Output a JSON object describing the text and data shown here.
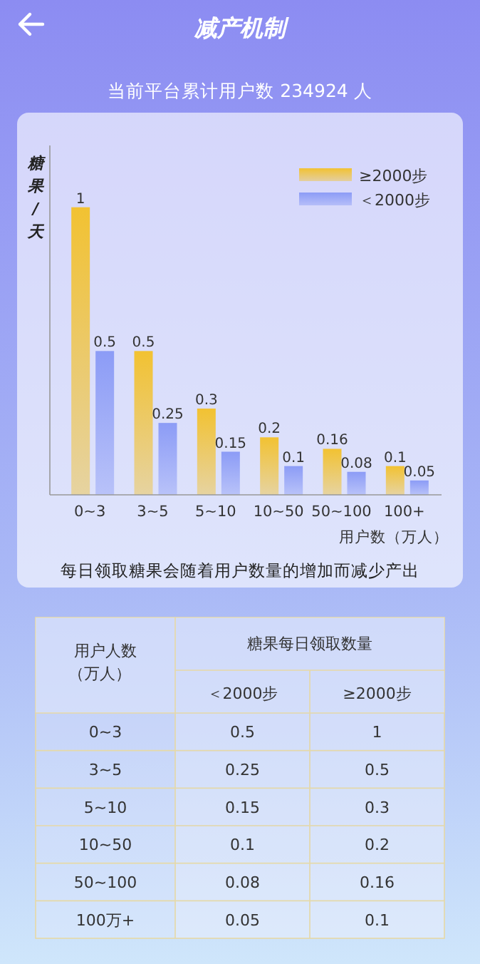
{
  "chart_data": [
    {
      "type": "bar",
      "title": "减产机制",
      "subtitle": "当前平台累计用户数  234924 人",
      "ylabel": "糖果/天",
      "xlabel": "用户数（万人）",
      "annotations": [
        "每日领取糖果会随着用户数量的增加而减少产出"
      ],
      "categories": [
        "0~3",
        "3~5",
        "5~10",
        "10~50",
        "50~100",
        "100+"
      ],
      "series": [
        {
          "name": "≥2000步",
          "color": "#f2c232",
          "values": [
            1,
            0.5,
            0.3,
            0.2,
            0.16,
            0.1
          ]
        },
        {
          "name": "＜2000步",
          "color": "#8c9cf6",
          "values": [
            0.5,
            0.25,
            0.15,
            0.1,
            0.08,
            0.05
          ]
        }
      ],
      "ylim": [
        0,
        1.2
      ],
      "tick_labels": "x",
      "data_labels": true,
      "legend": "top right"
    },
    {
      "type": "heatmap",
      "title": "糖果每日领取数量",
      "ylabel": "用户人数（万人）",
      "categories": [
        "＜2000步",
        "≥2000步"
      ],
      "y_categories": [
        "0~3",
        "3~5",
        "5~10",
        "10~50",
        "50~100",
        "100万+"
      ],
      "cells": [
        [
          0.5,
          1
        ],
        [
          0.25,
          0.5
        ],
        [
          0.15,
          0.3
        ],
        [
          0.1,
          0.2
        ],
        [
          0.08,
          0.16
        ],
        [
          0.05,
          0.1
        ]
      ],
      "data_labels": true
    }
  ]
}
